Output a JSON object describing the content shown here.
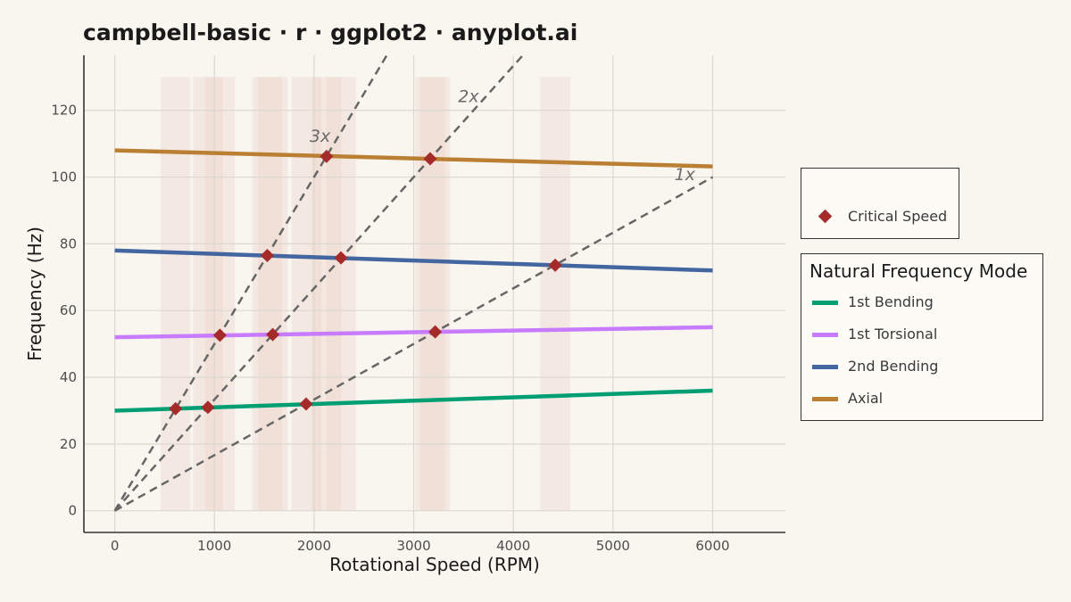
{
  "title": "campbell-basic · r · ggplot2 · anyplot.ai",
  "colors": {
    "background": "#f9f6f0",
    "grid": "#dcd8d0",
    "band": "#e8c8c0",
    "order_line": "#666666",
    "critical": "#a52a2a"
  },
  "chart_data": {
    "type": "line",
    "title": "campbell-basic · r · ggplot2 · anyplot.ai",
    "xlabel": "Rotational Speed (RPM)",
    "ylabel": "Frequency (Hz)",
    "xlim": [
      -310,
      6730
    ],
    "ylim": [
      -6.5,
      136.5
    ],
    "x_ticks": [
      0,
      1000,
      2000,
      3000,
      4000,
      5000,
      6000
    ],
    "y_ticks": [
      0,
      20,
      40,
      60,
      80,
      100,
      120
    ],
    "grid": true,
    "series": [
      {
        "name": "1st Bending",
        "color": "#009e73",
        "x": [
          0,
          6000
        ],
        "y": [
          30,
          36
        ]
      },
      {
        "name": "1st Torsional",
        "color": "#c77cff",
        "x": [
          0,
          6000
        ],
        "y": [
          52,
          55
        ]
      },
      {
        "name": "2nd Bending",
        "color": "#4466a0",
        "x": [
          0,
          6000
        ],
        "y": [
          78,
          72
        ]
      },
      {
        "name": "Axial",
        "color": "#bb7f34",
        "x": [
          0,
          6000
        ],
        "y": [
          108,
          103.2
        ]
      }
    ],
    "engine_orders": [
      {
        "label": "1x",
        "order": 1
      },
      {
        "label": "2x",
        "order": 2
      },
      {
        "label": "3x",
        "order": 3
      }
    ],
    "critical_speeds": {
      "name": "Critical Speed",
      "points": [
        {
          "x": 610,
          "y": 30.6
        },
        {
          "x": 935,
          "y": 31.0
        },
        {
          "x": 1920,
          "y": 32.0
        },
        {
          "x": 1055,
          "y": 52.6
        },
        {
          "x": 1585,
          "y": 52.8
        },
        {
          "x": 3215,
          "y": 53.6
        },
        {
          "x": 1530,
          "y": 76.5
        },
        {
          "x": 2270,
          "y": 75.8
        },
        {
          "x": 4420,
          "y": 73.6
        },
        {
          "x": 2125,
          "y": 106.2
        },
        {
          "x": 3165,
          "y": 105.5
        }
      ]
    },
    "resonance_bands": [
      {
        "x0": 460,
        "x1": 760
      },
      {
        "x0": 785,
        "x1": 1085
      },
      {
        "x0": 905,
        "x1": 1205
      },
      {
        "x0": 1380,
        "x1": 1680
      },
      {
        "x0": 1435,
        "x1": 1735
      },
      {
        "x0": 1775,
        "x1": 2075
      },
      {
        "x0": 1975,
        "x1": 2275
      },
      {
        "x0": 2120,
        "x1": 2420
      },
      {
        "x0": 3015,
        "x1": 3315
      },
      {
        "x0": 3065,
        "x1": 3365
      },
      {
        "x0": 4270,
        "x1": 4570
      }
    ],
    "band_y": [
      0,
      130
    ],
    "legends": {
      "critical": {
        "title": "",
        "label": "Critical Speed"
      },
      "modes": {
        "title": "Natural Frequency Mode",
        "items": [
          "1st Bending",
          "1st Torsional",
          "2nd Bending",
          "Axial"
        ]
      }
    }
  }
}
